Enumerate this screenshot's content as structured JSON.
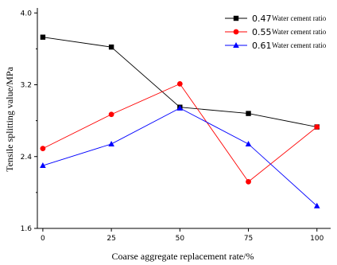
{
  "chart_data": {
    "type": "line",
    "xlabel": "Coarse aggregate replacement rate/%",
    "ylabel": "Tensile splitting value/MPa",
    "x": [
      0,
      25,
      50,
      75,
      100
    ],
    "x_ticks": [
      "0",
      "25",
      "50",
      "75",
      "100"
    ],
    "xlim": [
      -2,
      105
    ],
    "y_ticks": [
      "1.6",
      "2.4",
      "3.2",
      "4.0"
    ],
    "y_tick_values": [
      1.6,
      2.4,
      3.2,
      4.0
    ],
    "ylim": [
      1.6,
      4.02
    ],
    "grid": false,
    "legend_position": "top-right",
    "series": [
      {
        "num": "0.47",
        "text": "Water cement ratio",
        "color": "#000000",
        "marker": "square",
        "values": [
          3.73,
          3.62,
          2.95,
          2.88,
          2.73
        ]
      },
      {
        "num": "0.55",
        "text": "Water cement ratio",
        "color": "#ff0000",
        "marker": "circle",
        "values": [
          2.49,
          2.87,
          3.21,
          2.12,
          2.73
        ]
      },
      {
        "num": "0.61",
        "text": "Water cement ratio",
        "color": "#0000ff",
        "marker": "triangle",
        "values": [
          2.3,
          2.54,
          2.94,
          2.54,
          1.85
        ]
      }
    ]
  }
}
